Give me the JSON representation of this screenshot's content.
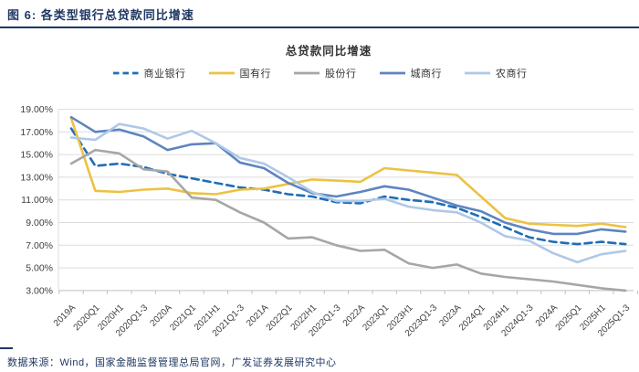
{
  "figure": {
    "header": "图 6:  各类型银行总贷款同比增速",
    "source": "数据来源：Wind，国家金融监督管理总局官网，广发证券发展研究中心"
  },
  "chart_data": {
    "type": "line",
    "title": "总贷款同比增速",
    "categories": [
      "2019A",
      "2020Q1",
      "2020H1",
      "2020Q1-3",
      "2020A",
      "2021Q1",
      "2021H1",
      "2021Q1-3",
      "2021A",
      "2022Q1",
      "2022H1",
      "2022Q1-3",
      "2022A",
      "2023Q1",
      "2023H1",
      "2023Q1-3",
      "2023A",
      "2024Q1",
      "2024H1",
      "2024Q1-3",
      "2024A",
      "2025Q1",
      "2025H1",
      "2025Q1-3"
    ],
    "series": [
      {
        "key": "commercial-bank",
        "name": "商业银行",
        "color": "#1f6db7",
        "dashed": true,
        "values": [
          17.3,
          14.0,
          14.2,
          13.9,
          13.3,
          12.9,
          12.5,
          12.1,
          11.9,
          11.5,
          11.3,
          10.8,
          10.7,
          11.3,
          11.0,
          10.8,
          10.3,
          9.5,
          8.6,
          7.7,
          7.3,
          7.1,
          7.3,
          7.1
        ]
      },
      {
        "key": "state-owned-bank",
        "name": "国有行",
        "color": "#ecc245",
        "dashed": false,
        "values": [
          18.2,
          11.8,
          11.7,
          11.9,
          12.0,
          11.6,
          11.5,
          11.9,
          12.0,
          12.4,
          12.8,
          12.7,
          12.6,
          13.8,
          13.6,
          13.4,
          13.2,
          11.3,
          9.4,
          8.9,
          8.8,
          8.7,
          8.9,
          8.6
        ]
      },
      {
        "key": "joint-stock-bank",
        "name": "股份行",
        "color": "#a6a6a6",
        "dashed": false,
        "values": [
          14.2,
          15.4,
          15.1,
          13.7,
          13.5,
          11.2,
          11.0,
          9.9,
          9.0,
          7.6,
          7.7,
          7.0,
          6.5,
          6.6,
          5.4,
          5.0,
          5.3,
          4.5,
          4.2,
          4.0,
          3.8,
          3.5,
          3.2,
          3.0
        ]
      },
      {
        "key": "city-commercial-bank",
        "name": "城商行",
        "color": "#5e84c0",
        "dashed": false,
        "values": [
          18.3,
          17.0,
          17.2,
          16.6,
          15.4,
          15.9,
          16.0,
          14.3,
          13.8,
          12.5,
          11.6,
          11.3,
          11.7,
          12.2,
          11.9,
          11.2,
          10.5,
          10.0,
          9.0,
          8.4,
          8.0,
          8.0,
          8.4,
          8.2
        ]
      },
      {
        "key": "rural-commercial-bank",
        "name": "农商行",
        "color": "#afc8e8",
        "dashed": false,
        "values": [
          16.5,
          16.3,
          17.7,
          17.3,
          16.4,
          17.1,
          16.0,
          14.7,
          14.2,
          13.0,
          11.7,
          10.9,
          10.9,
          11.1,
          10.4,
          10.1,
          9.9,
          9.0,
          7.8,
          7.4,
          6.3,
          5.5,
          6.2,
          6.5
        ]
      }
    ],
    "ylim": [
      3,
      19
    ],
    "ytick_step": 2,
    "ytick_labels": [
      "19.00%",
      "17.00%",
      "15.00%",
      "13.00%",
      "11.00%",
      "9.00%",
      "7.00%",
      "5.00%",
      "3.00%"
    ],
    "grid": true,
    "legend_position": "top",
    "colors": {
      "grid_line": "#dcdcdc",
      "axis_line": "#bfbfbf",
      "tick_label": "#404040",
      "header_accent": "#1f3864"
    }
  }
}
